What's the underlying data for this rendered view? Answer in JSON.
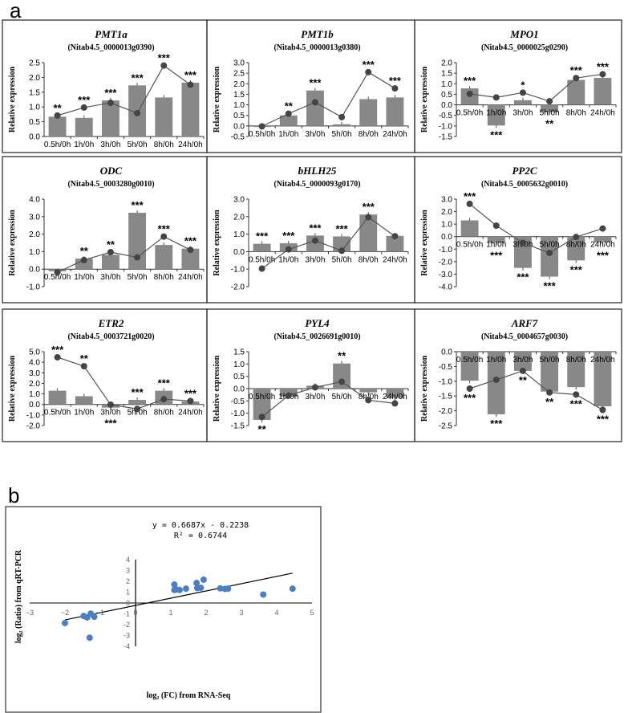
{
  "panel_labels": {
    "a": "a",
    "b": "b"
  },
  "chart_data": [
    {
      "type": "bar+line",
      "title": "PMT1a",
      "subtitle": "(Nitab4.5_0000013g0390)",
      "ylabel": "Relative expression",
      "categories": [
        "0.5h/0h",
        "1h/0h",
        "3h/0h",
        "5h/0h",
        "8h/0h",
        "24h/0h"
      ],
      "ylim": [
        0,
        2.5
      ],
      "ystep": 0.5,
      "bars": [
        0.67,
        0.63,
        1.22,
        1.73,
        1.32,
        1.82
      ],
      "line": [
        0.71,
        0.98,
        1.14,
        0.79,
        2.4,
        1.75
      ],
      "sig": [
        "**",
        "***",
        "***",
        "***",
        "***",
        "***"
      ]
    },
    {
      "type": "bar+line",
      "title": "PMT1b",
      "subtitle": "(Nitab4.5_0000013g0380)",
      "ylabel": "Relative expression",
      "categories": [
        "0.5h/0h",
        "1h/0h",
        "3h/0h",
        "5h/0h",
        "8h/0h",
        "24h/0h"
      ],
      "ylim": [
        -0.5,
        3.0
      ],
      "ystep": 0.5,
      "bars": [
        -0.05,
        0.5,
        1.68,
        0.08,
        1.27,
        1.35
      ],
      "line": [
        -0.02,
        0.58,
        1.12,
        0.42,
        2.55,
        1.78
      ],
      "sig": [
        "",
        "**",
        "***",
        "",
        "***",
        "***"
      ]
    },
    {
      "type": "bar+line",
      "title": "MPO1",
      "subtitle": "(Nitab4.5_0000025g0290)",
      "ylabel": "Relative expression",
      "categories": [
        "0.5h/0h",
        "1h/0h",
        "3h/0h",
        "5h/0h",
        "8h/0h",
        "24h/0h"
      ],
      "ylim": [
        -1.5,
        2.0
      ],
      "ystep": 0.5,
      "bars": [
        0.78,
        -0.98,
        0.22,
        -0.35,
        1.18,
        1.28
      ],
      "line": [
        0.52,
        0.35,
        0.58,
        0.17,
        1.27,
        1.45
      ],
      "sig": [
        "***",
        "***",
        "*",
        "**",
        "***",
        "***"
      ]
    },
    {
      "type": "bar+line",
      "title": "ODC",
      "subtitle": "(Nitab4.5_0003280g0010)",
      "ylabel": "Relative expression",
      "categories": [
        "0.5h/0h",
        "1h/0h",
        "3h/0h",
        "5h/0h",
        "8h/0h",
        "24h/0h"
      ],
      "ylim": [
        -1.0,
        4.0
      ],
      "ystep": 1.0,
      "bars": [
        -0.12,
        0.6,
        0.82,
        3.22,
        1.38,
        1.17
      ],
      "line": [
        -0.18,
        0.52,
        0.97,
        0.67,
        1.86,
        1.1
      ],
      "sig": [
        "",
        "**",
        "**",
        "***",
        "***",
        "***"
      ]
    },
    {
      "type": "bar+line",
      "title": "bHLH25",
      "subtitle": "(Nitab4.5_0000093g0170)",
      "ylabel": "Relative expression",
      "categories": [
        "0.5h/0h",
        "1h/0h",
        "3h/0h",
        "5h/0h",
        "8h/0h",
        "24h/0h"
      ],
      "ylim": [
        -2.0,
        3.0
      ],
      "ystep": 1.0,
      "bars": [
        0.45,
        0.48,
        0.92,
        0.87,
        2.12,
        0.9
      ],
      "line": [
        -0.97,
        0.13,
        0.63,
        0.05,
        1.97,
        0.88
      ],
      "sig": [
        "***",
        "***",
        "***",
        "***",
        "***",
        ""
      ]
    },
    {
      "type": "bar+line",
      "title": "PP2C",
      "subtitle": "(Nitab4.5_0005632g0010)",
      "ylabel": "Relative expression",
      "categories": [
        "0.5h/0h",
        "1h/0h",
        "3h/0h",
        "5h/0h",
        "8h/0h",
        "24h/0h"
      ],
      "ylim": [
        -4.0,
        3.0
      ],
      "ystep": 1.0,
      "bars": [
        1.3,
        -0.5,
        -2.5,
        -3.2,
        -1.9,
        -0.45
      ],
      "line": [
        2.62,
        0.88,
        -0.5,
        -1.3,
        -0.03,
        0.65
      ],
      "sig": [
        "***",
        "***",
        "***",
        "***",
        "***",
        "***"
      ]
    },
    {
      "type": "bar+line",
      "title": "ETR2",
      "subtitle": "(Nitab4.5_0003721g0020)",
      "ylabel": "Relative expression",
      "categories": [
        "0.5h/0h",
        "1h/0h",
        "3h/0h",
        "5h/0h",
        "8h/0h",
        "24h/0h"
      ],
      "ylim": [
        -2.0,
        5.0
      ],
      "ystep": 1.0,
      "bars": [
        1.3,
        0.78,
        -0.3,
        0.43,
        1.3,
        0.28
      ],
      "line": [
        4.47,
        3.62,
        -0.02,
        -0.42,
        0.5,
        0.33
      ],
      "sig": [
        "***",
        "**",
        "***",
        "***",
        "***",
        "***"
      ]
    },
    {
      "type": "bar+line",
      "title": "PYL4",
      "subtitle": "(Nitab4.5_0026691g0010)",
      "ylabel": "Relative expression",
      "categories": [
        "0.5h/0h",
        "1h/0h",
        "3h/0h",
        "5h/0h",
        "8h/0h",
        "24h/0h"
      ],
      "ylim": [
        -1.5,
        1.5
      ],
      "ystep": 0.5,
      "bars": [
        -1.27,
        -0.33,
        0.12,
        1.02,
        -0.15,
        -0.38
      ],
      "line": [
        -1.15,
        -0.28,
        0.05,
        0.28,
        -0.47,
        -0.6
      ],
      "sig": [
        "**",
        "",
        "",
        "**",
        "",
        ""
      ]
    },
    {
      "type": "bar+line",
      "title": "ARF7",
      "subtitle": "(Nitab4.5_0004657g0030)",
      "ylabel": "Relative expression",
      "categories": [
        "0.5h/0h",
        "1h/0h",
        "3h/0h",
        "5h/0h",
        "8h/0h",
        "24h/0h"
      ],
      "ylim": [
        -2.5,
        0
      ],
      "ystep": 0.5,
      "bars": [
        -0.98,
        -2.12,
        -0.65,
        -1.35,
        -1.2,
        -1.85
      ],
      "line": [
        -1.25,
        -0.95,
        -0.65,
        -1.38,
        -1.45,
        -1.97
      ],
      "sig": [
        "***",
        "***",
        "**",
        "**",
        "***",
        "***"
      ]
    },
    {
      "type": "scatter",
      "xlabel": "log₂ (FC) from RNA-Seq",
      "ylabel": "log₂ (Ratio) from qRT-PCR",
      "xlim": [
        -3,
        5
      ],
      "ylim": [
        -4,
        4
      ],
      "equation": "y = 0.6687x - 0.2238",
      "r2": "R² = 0.6744",
      "fit": {
        "slope": 0.6687,
        "intercept": -0.2238,
        "xrange": [
          -2,
          4.45
        ]
      },
      "point_color": "#4a7fc1",
      "points": [
        [
          1.1,
          1.7
        ],
        [
          1.1,
          1.2
        ],
        [
          1.15,
          1.25
        ],
        [
          1.25,
          1.2
        ],
        [
          1.43,
          1.32
        ],
        [
          1.73,
          1.85
        ],
        [
          1.75,
          1.38
        ],
        [
          1.85,
          1.4
        ],
        [
          1.93,
          2.15
        ],
        [
          2.4,
          1.35
        ],
        [
          2.53,
          1.3
        ],
        [
          2.62,
          1.32
        ],
        [
          3.62,
          0.78
        ],
        [
          4.45,
          1.32
        ],
        [
          -1.27,
          -0.98
        ],
        [
          -1.47,
          -1.2
        ],
        [
          -1.37,
          -1.33
        ],
        [
          -1.17,
          -1.27
        ],
        [
          -2.0,
          -1.85
        ],
        [
          -1.3,
          -3.2
        ]
      ]
    }
  ]
}
